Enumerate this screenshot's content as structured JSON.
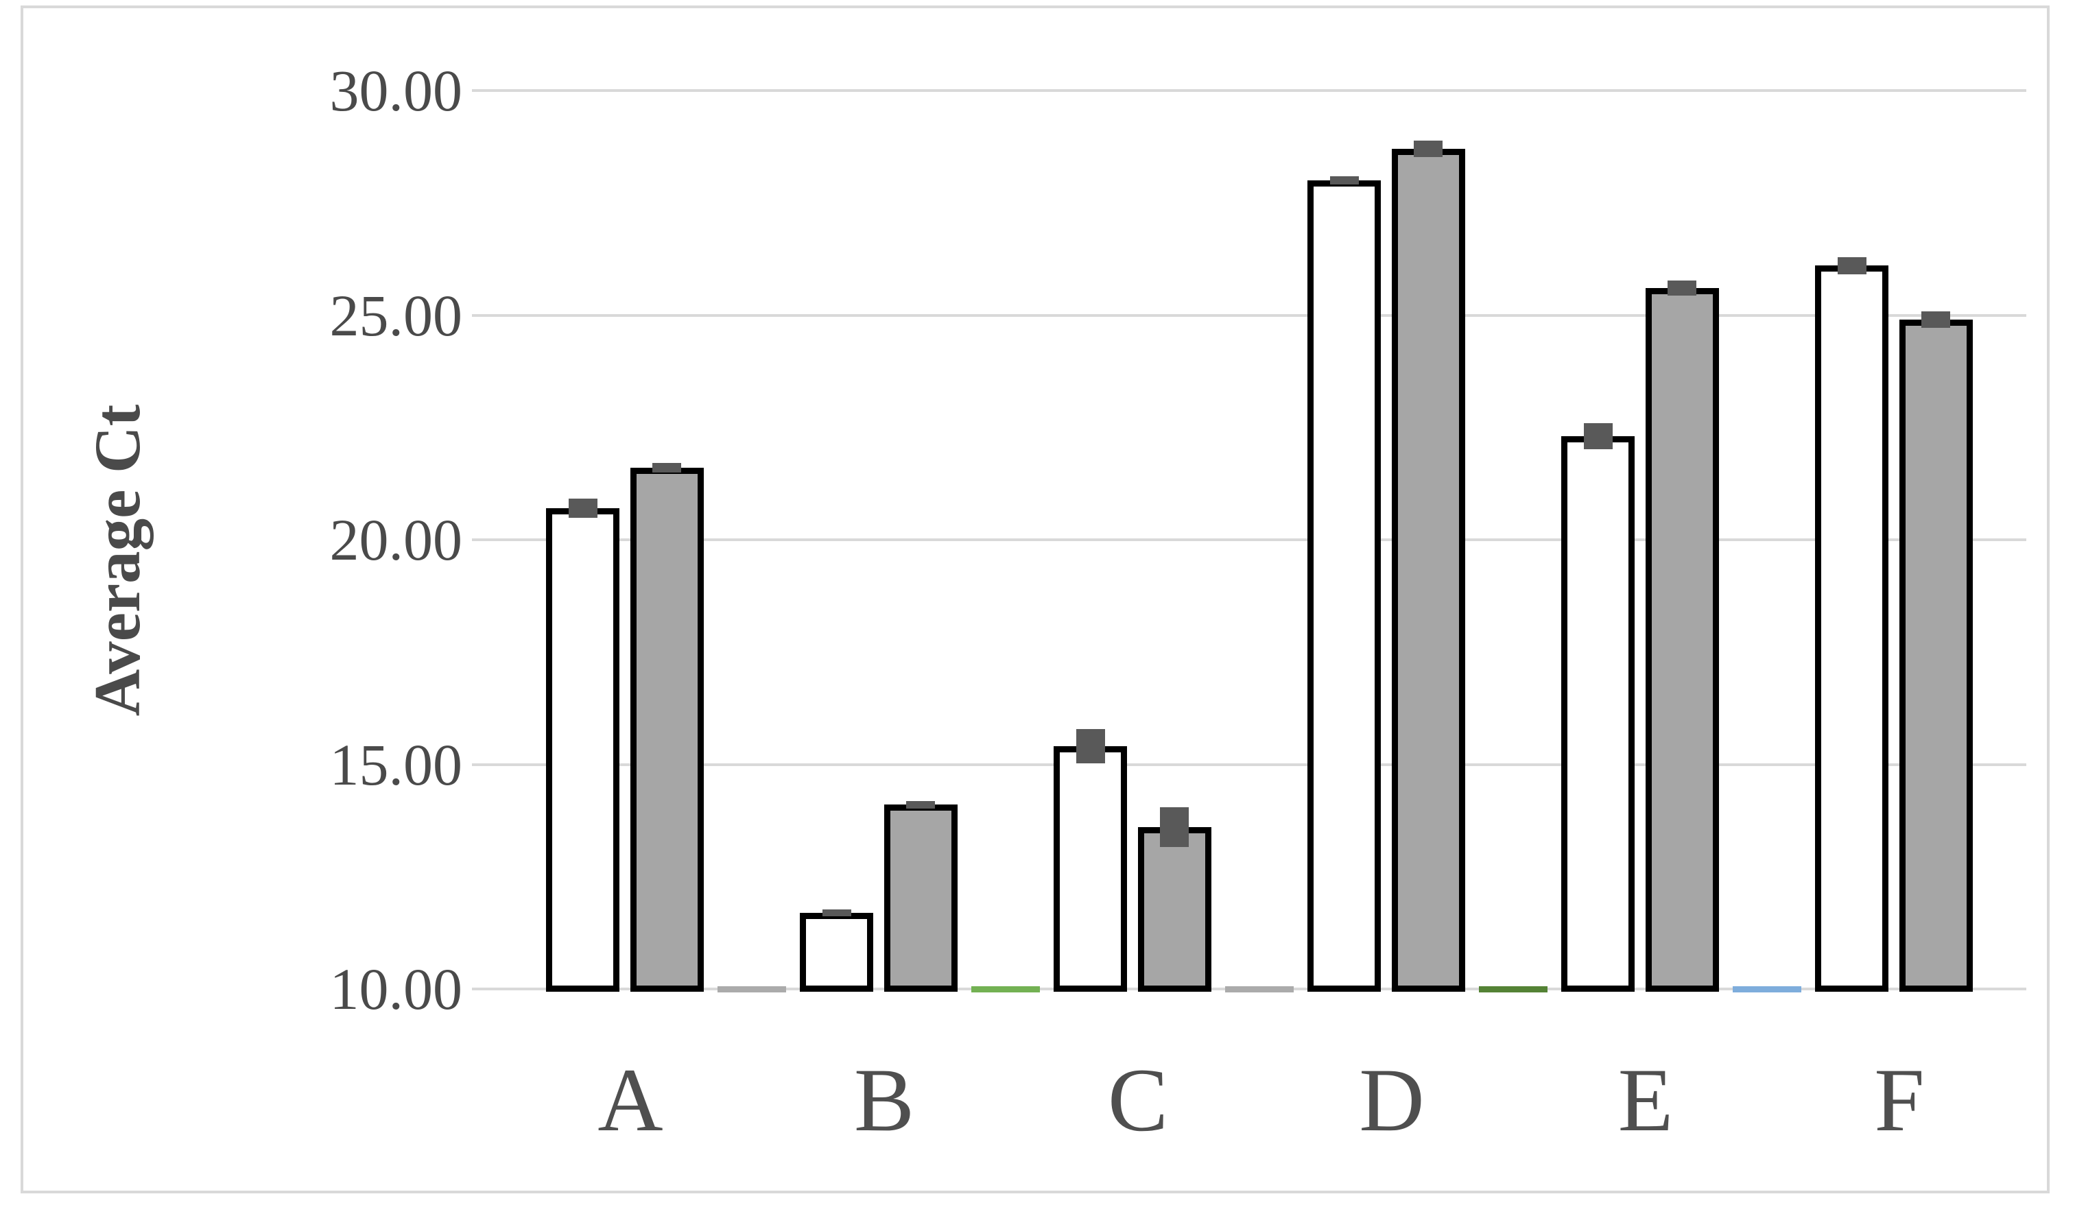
{
  "chart_data": {
    "type": "bar",
    "title": "",
    "xlabel": "",
    "ylabel": "Average Ct",
    "categories": [
      "A",
      "B",
      "C",
      "D",
      "E",
      "F"
    ],
    "series": [
      {
        "name": "white-bars",
        "fill": "#ffffff",
        "border": "#000000",
        "values": [
          20.7,
          11.7,
          15.4,
          28.0,
          22.3,
          26.1
        ],
        "errors": [
          0.21,
          0.06,
          0.38,
          0.09,
          0.29,
          0.19
        ]
      },
      {
        "name": "gray-bars",
        "fill": "#a6a6a6",
        "border": "#000000",
        "values": [
          21.6,
          14.1,
          13.6,
          28.7,
          25.6,
          24.9
        ],
        "errors": [
          0.11,
          0.09,
          0.44,
          0.18,
          0.17,
          0.18
        ]
      }
    ],
    "baseline_segments": [
      {
        "after_category": "A",
        "color": "#ababab"
      },
      {
        "after_category": "B",
        "color": "#73b153"
      },
      {
        "after_category": "C",
        "color": "#ababab"
      },
      {
        "after_category": "D",
        "color": "#548235"
      },
      {
        "after_category": "E",
        "color": "#7eaddc"
      }
    ],
    "yticks": [
      "10.00",
      "15.00",
      "20.00",
      "25.00",
      "30.00"
    ],
    "ylim": [
      10,
      30
    ],
    "grid": true,
    "legend_position": "none",
    "error_cap_color": "#595959",
    "gridline_color": "#d9d9d9",
    "text_color": "#4a4a4a"
  }
}
